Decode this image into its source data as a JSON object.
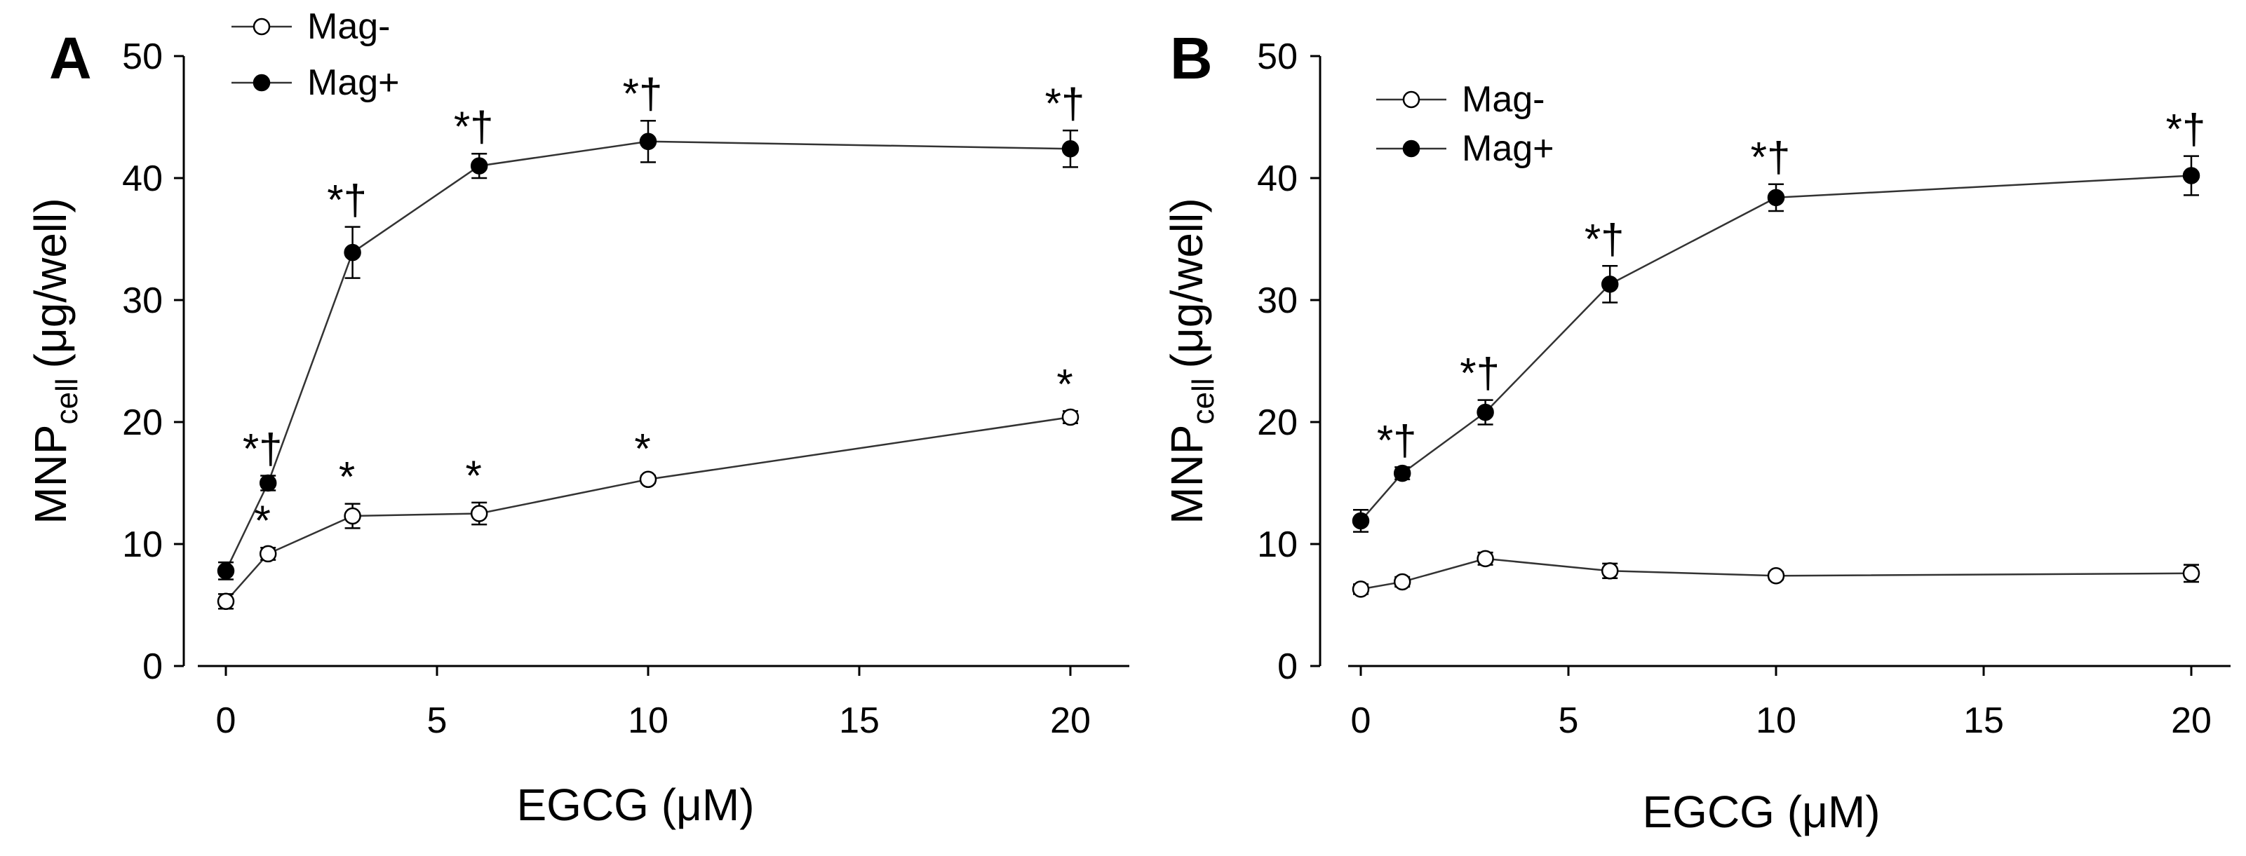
{
  "chart_data": [
    {
      "panel_label": "A",
      "type": "line",
      "xlabel": "EGCG (μM)",
      "ylabel_main": "MNP",
      "ylabel_sub": "cell",
      "ylabel_unit": "(μg/well)",
      "xlim": [
        -1,
        21
      ],
      "ylim": [
        0,
        50
      ],
      "xticks": [
        0,
        5,
        10,
        15,
        20
      ],
      "yticks": [
        0,
        10,
        20,
        30,
        40,
        50
      ],
      "legend_position": "top-left",
      "series": [
        {
          "name": "Mag-",
          "marker": "open-circle",
          "x": [
            0,
            1,
            3,
            6,
            10,
            20
          ],
          "y": [
            5.3,
            9.2,
            12.3,
            12.5,
            15.3,
            20.4
          ],
          "err": [
            0.6,
            0.5,
            1.0,
            0.9,
            0.3,
            0.5
          ],
          "annotations": [
            "",
            "*",
            "*",
            "*",
            "*",
            "*"
          ]
        },
        {
          "name": "Mag+",
          "marker": "filled-circle",
          "x": [
            0,
            1,
            3,
            6,
            10,
            20
          ],
          "y": [
            7.8,
            15.0,
            33.9,
            41.0,
            43.0,
            42.4
          ],
          "err": [
            0.7,
            0.6,
            2.1,
            1.0,
            1.7,
            1.5
          ],
          "annotations": [
            "",
            "*†",
            "*†",
            "*†",
            "*†",
            "*†"
          ]
        }
      ]
    },
    {
      "panel_label": "B",
      "type": "line",
      "xlabel": "EGCG (μM)",
      "ylabel_main": "MNP",
      "ylabel_sub": "cell",
      "ylabel_unit": "(μg/well)",
      "xlim": [
        -1,
        21
      ],
      "ylim": [
        0,
        50
      ],
      "xticks": [
        0,
        5,
        10,
        15,
        20
      ],
      "yticks": [
        0,
        10,
        20,
        30,
        40,
        50
      ],
      "legend_position": "top-left",
      "series": [
        {
          "name": "Mag-",
          "marker": "open-circle",
          "x": [
            0,
            1,
            3,
            6,
            10,
            20
          ],
          "y": [
            6.3,
            6.9,
            8.8,
            7.8,
            7.4,
            7.6
          ],
          "err": [
            0.4,
            0.4,
            0.5,
            0.6,
            0.3,
            0.7
          ],
          "annotations": [
            "",
            "",
            "",
            "",
            "",
            ""
          ]
        },
        {
          "name": "Mag+",
          "marker": "filled-circle",
          "x": [
            0,
            1,
            3,
            6,
            10,
            20
          ],
          "y": [
            11.9,
            15.8,
            20.8,
            31.3,
            38.4,
            40.2
          ],
          "err": [
            0.9,
            0.5,
            1.0,
            1.5,
            1.1,
            1.6
          ],
          "annotations": [
            "",
            "*†",
            "*†",
            "*†",
            "*†",
            "*†"
          ]
        }
      ]
    }
  ]
}
